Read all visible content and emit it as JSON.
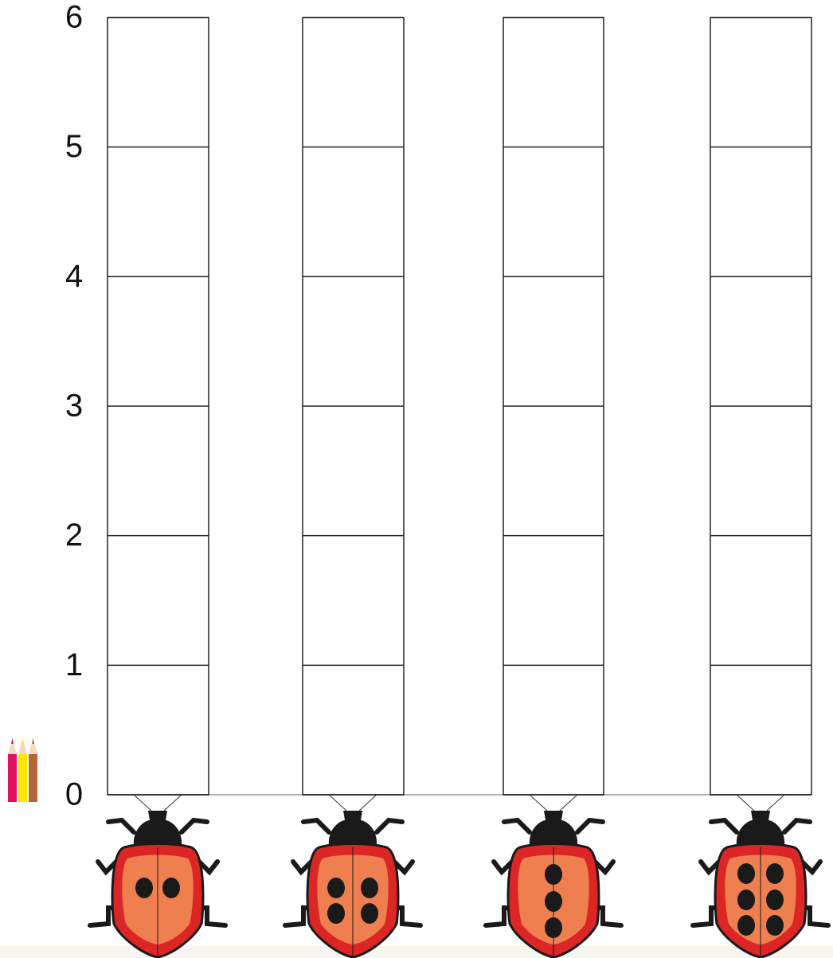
{
  "y_axis": {
    "ticks": [
      0,
      1,
      2,
      3,
      4,
      5,
      6
    ]
  }
}
